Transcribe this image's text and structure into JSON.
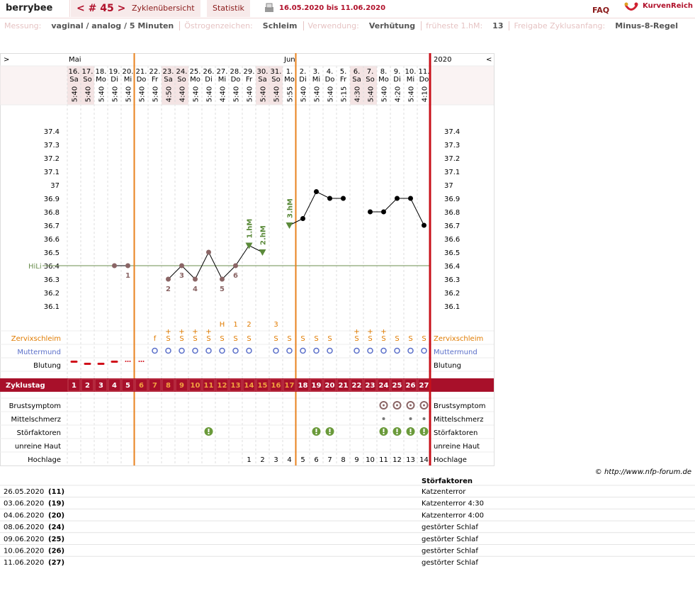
{
  "header": {
    "user": "berrybee",
    "cycle": "< # 45 >",
    "nav": [
      "Zyklenübersicht",
      "Statistik"
    ],
    "date_range": "16.05.2020 bis 11.06.2020",
    "faq": "FAQ",
    "brand": "KurvenReich"
  },
  "settings": [
    {
      "label": "Messung:",
      "value": "vaginal / analog / 5 Minuten"
    },
    {
      "label": "Östrogenzeichen:",
      "value": "Schleim"
    },
    {
      "label": "Verwendung:",
      "value": "Verhütung"
    },
    {
      "label": "früheste 1.hM:",
      "value": "13"
    },
    {
      "label": "Freigabe Zyklusanfang:",
      "value": "Minus-8-Regel"
    }
  ],
  "chart_data": {
    "type": "line",
    "nav_prev": ">",
    "nav_next": "<",
    "year": "2020",
    "month_labels": [
      "Mai",
      null,
      null,
      null,
      null,
      null,
      null,
      null,
      null,
      null,
      null,
      null,
      null,
      null,
      null,
      null,
      "Juni",
      null,
      null,
      null,
      null,
      null,
      null,
      null,
      null,
      null,
      null
    ],
    "categories": [
      "16.",
      "17.",
      "18.",
      "19.",
      "20.",
      "21.",
      "22.",
      "23.",
      "24.",
      "25.",
      "26.",
      "27.",
      "28.",
      "29.",
      "30.",
      "31.",
      "1.",
      "2.",
      "3.",
      "4.",
      "5.",
      "6.",
      "7.",
      "8.",
      "9.",
      "10.",
      "11."
    ],
    "weekdays": [
      "Sa",
      "So",
      "Mo",
      "Di",
      "Mi",
      "Do",
      "Fr",
      "Sa",
      "So",
      "Mo",
      "Di",
      "Mi",
      "Do",
      "Fr",
      "Sa",
      "So",
      "Mo",
      "Di",
      "Mi",
      "Do",
      "Fr",
      "Sa",
      "So",
      "Mo",
      "Di",
      "Mi",
      "Do"
    ],
    "times": [
      "5:40",
      "5:40",
      "5:40",
      "5:40",
      "5:40",
      "5:40",
      "5:40",
      "4:50",
      "4:40",
      "5:40",
      "5:40",
      "4:40",
      "5:40",
      "5:40",
      "5:40",
      "5:40",
      "5:55",
      "5:40",
      "5:40",
      "5:40",
      "5:15",
      "4:30",
      "5:40",
      "5:40",
      "4:20",
      "5:40",
      "4:10"
    ],
    "values": [
      null,
      null,
      null,
      36.4,
      36.4,
      null,
      null,
      36.3,
      36.4,
      36.3,
      36.5,
      36.3,
      36.4,
      36.55,
      36.5,
      null,
      36.7,
      36.75,
      36.95,
      36.9,
      36.9,
      null,
      36.8,
      36.8,
      36.9,
      36.9,
      36.7
    ],
    "point_labels": [
      null,
      null,
      null,
      null,
      "1",
      null,
      null,
      "2",
      "3",
      "4",
      null,
      "5",
      "6",
      null,
      null,
      null,
      null,
      null,
      null,
      null,
      null,
      null,
      null,
      null,
      null,
      null,
      null
    ],
    "hm_labels": [
      null,
      null,
      null,
      null,
      null,
      null,
      null,
      null,
      null,
      null,
      null,
      null,
      null,
      "1.hM",
      "2.hM",
      null,
      "3.hM",
      null,
      null,
      null,
      null,
      null,
      null,
      null,
      null,
      null,
      null
    ],
    "color": "#000000",
    "pre_color": "#8a6565",
    "hm_color": "#5b8a3a",
    "ylim": [
      36.0,
      37.5
    ],
    "yticks": [
      36.1,
      36.2,
      36.3,
      36.4,
      36.5,
      36.6,
      36.7,
      36.8,
      36.9,
      37,
      37.1,
      37.2,
      37.3,
      37.4
    ],
    "baseline": {
      "label": "HiLi",
      "value": 36.4,
      "color": "#6b8e4e"
    },
    "row_labels": {
      "mucus": "Zervixschleim",
      "cervix": "Muttermund",
      "bleeding": "Blutung",
      "cycle_day": "Zyklustag",
      "breast": "Brustsymptom",
      "mittelschmerz": "Mittelschmerz",
      "disturbance": "Störfaktoren",
      "skin": "unreine Haut",
      "high": "Hochlage"
    },
    "mucus_peak": [
      null,
      null,
      null,
      null,
      null,
      null,
      null,
      null,
      null,
      null,
      null,
      "H",
      "1",
      "2",
      null,
      "3",
      null,
      null,
      null,
      null,
      null,
      null,
      null,
      null,
      null,
      null,
      null
    ],
    "mucus_plus": [
      null,
      null,
      null,
      null,
      null,
      null,
      null,
      "+",
      "+",
      "+",
      "+",
      null,
      null,
      null,
      null,
      null,
      null,
      null,
      null,
      null,
      null,
      "+",
      "+",
      "+",
      null,
      null,
      null
    ],
    "cervical_mucus": [
      null,
      null,
      null,
      null,
      null,
      null,
      "f",
      "S",
      "S",
      "S",
      "S",
      "S",
      "S",
      "S",
      null,
      "S",
      "S",
      "S",
      "S",
      "S",
      null,
      "S",
      "S",
      "S",
      "S",
      "S",
      "S"
    ],
    "cycle_days": [
      1,
      2,
      3,
      4,
      5,
      6,
      7,
      8,
      9,
      10,
      11,
      12,
      13,
      14,
      15,
      16,
      17,
      18,
      19,
      20,
      21,
      22,
      23,
      24,
      25,
      26,
      27
    ],
    "hochlage": [
      null,
      null,
      null,
      null,
      null,
      null,
      null,
      null,
      null,
      null,
      null,
      null,
      null,
      1,
      2,
      3,
      4,
      5,
      6,
      7,
      8,
      9,
      10,
      11,
      12,
      13,
      14
    ]
  },
  "copyright": "© http://www.nfp-forum.de",
  "notes": {
    "header": "Störfaktoren",
    "rows": [
      [
        "26.05.2020",
        "(11)",
        "Katzenterror"
      ],
      [
        "03.06.2020",
        "(19)",
        "Katzenterror 4:30"
      ],
      [
        "04.06.2020",
        "(20)",
        "Katzenterror 4:00"
      ],
      [
        "08.06.2020",
        "(24)",
        "gestörter Schlaf"
      ],
      [
        "09.06.2020",
        "(25)",
        "gestörter Schlaf"
      ],
      [
        "10.06.2020",
        "(26)",
        "gestörter Schlaf"
      ],
      [
        "11.06.2020",
        "(27)",
        "gestörter Schlaf"
      ]
    ]
  }
}
